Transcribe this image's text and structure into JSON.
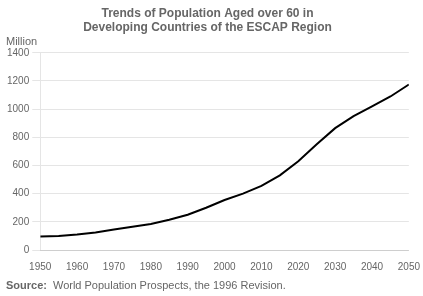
{
  "chart_data": {
    "type": "line",
    "title": "Trends of Population Aged over 60 in\nDeveloping Countries of the ESCAP Region",
    "ylabel": "Million",
    "annotations": [
      "Source:",
      "World Population Prospects, the 1996 Revision."
    ],
    "x": [
      1950,
      1955,
      1960,
      1965,
      1970,
      1975,
      1980,
      1985,
      1990,
      1995,
      2000,
      2005,
      2010,
      2015,
      2020,
      2025,
      2030,
      2035,
      2040,
      2045,
      2050
    ],
    "values": [
      95,
      100,
      110,
      125,
      145,
      165,
      185,
      215,
      250,
      300,
      355,
      400,
      455,
      530,
      630,
      750,
      865,
      950,
      1020,
      1090,
      1175
    ],
    "color": "#000000",
    "xlim": [
      1950,
      2050
    ],
    "xticks": [
      1950,
      1960,
      1970,
      1980,
      1990,
      2000,
      2010,
      2020,
      2030,
      2040,
      2050
    ],
    "ylim": [
      0,
      1400
    ],
    "yticks": [
      0,
      200,
      400,
      600,
      800,
      1000,
      1200,
      1400
    ],
    "grid": "y"
  }
}
